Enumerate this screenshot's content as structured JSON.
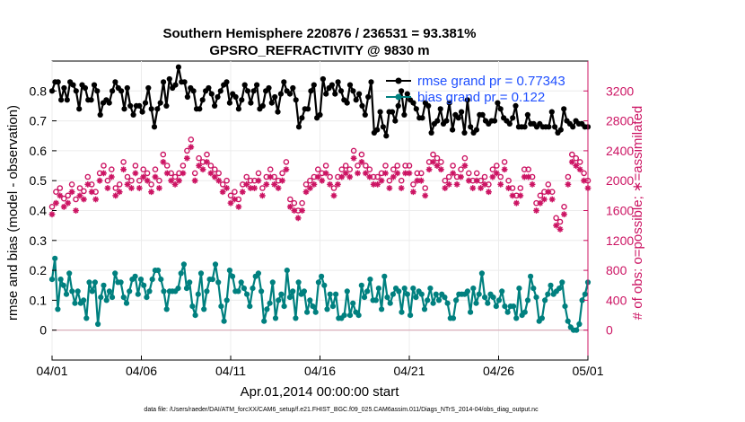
{
  "title_line1": "Southern Hemisphere 220876 / 236531 = 93.381%",
  "title_line2": "GPSRO_REFRACTIVITY @ 9830 m",
  "xlabel": "Apr.01,2014 00:00:00 start",
  "ylabel_left": "rmse and bias (model - observation)",
  "ylabel_right": "# of obs: o=possible; ∗=assimilated",
  "footnote": "data file: /Users/raeder/DAI/ATM_forcXX/CAM6_setup/f.e21.FHIST_BGC.f09_025.CAM6assim.011/Diags_NTrS_2014-04/obs_diag_output.nc",
  "legend": {
    "rmse": "rmse grand pr = 0.77343",
    "bias": "bias grand pr = 0.122"
  },
  "colors": {
    "rmse": "#000000",
    "bias": "#00807f",
    "count": "#cc1463",
    "zero_line": "#d8a7b4"
  },
  "chart_data": {
    "type": "line",
    "x_ticks": [
      "04/01",
      "04/06",
      "04/11",
      "04/16",
      "04/21",
      "04/26",
      "05/01"
    ],
    "x_tick_days": [
      0,
      5,
      10,
      15,
      20,
      25,
      30
    ],
    "xlim_days": [
      0,
      30
    ],
    "left_ylim": [
      -0.1,
      0.9
    ],
    "left_ticks": [
      "0",
      "0.1",
      "0.2",
      "0.3",
      "0.4",
      "0.5",
      "0.6",
      "0.7",
      "0.8"
    ],
    "left_tick_values": [
      0,
      0.1,
      0.2,
      0.3,
      0.4,
      0.5,
      0.6,
      0.7,
      0.8
    ],
    "right_ylim": [
      -400,
      3600
    ],
    "right_ticks": [
      "0",
      "400",
      "800",
      "1200",
      "1600",
      "2000",
      "2400",
      "2800",
      "3200"
    ],
    "right_tick_values": [
      0,
      400,
      800,
      1200,
      1600,
      2000,
      2400,
      2800,
      3200
    ],
    "series": [
      {
        "name": "rmse grand pr = 0.77343",
        "axis": "left",
        "values": [
          0.8,
          0.83,
          0.83,
          0.77,
          0.81,
          0.77,
          0.83,
          0.82,
          0.8,
          0.74,
          0.82,
          0.81,
          0.77,
          0.77,
          0.82,
          0.8,
          0.72,
          0.76,
          0.77,
          0.76,
          0.8,
          0.83,
          0.81,
          0.8,
          0.74,
          0.81,
          0.75,
          0.72,
          0.75,
          0.75,
          0.73,
          0.76,
          0.81,
          0.74,
          0.68,
          0.74,
          0.76,
          0.83,
          0.75,
          0.84,
          0.81,
          0.82,
          0.88,
          0.83,
          0.83,
          0.78,
          0.81,
          0.8,
          0.74,
          0.74,
          0.77,
          0.8,
          0.81,
          0.79,
          0.75,
          0.78,
          0.8,
          0.82,
          0.83,
          0.76,
          0.79,
          0.78,
          0.74,
          0.77,
          0.82,
          0.8,
          0.76,
          0.8,
          0.82,
          0.74,
          0.75,
          0.8,
          0.81,
          0.76,
          0.78,
          0.73,
          0.79,
          0.83,
          0.8,
          0.79,
          0.81,
          0.77,
          0.68,
          0.71,
          0.74,
          0.74,
          0.8,
          0.82,
          0.71,
          0.72,
          0.84,
          0.79,
          0.81,
          0.82,
          0.79,
          0.83,
          0.8,
          0.77,
          0.76,
          0.82,
          0.8,
          0.77,
          0.79,
          0.75,
          0.72,
          0.78,
          0.83,
          0.66,
          0.67,
          0.73,
          0.68,
          0.65,
          0.73,
          0.73,
          0.7,
          0.75,
          0.8,
          0.72,
          0.79,
          0.77,
          0.76,
          0.74,
          0.71,
          0.71,
          0.76,
          0.75,
          0.66,
          0.69,
          0.7,
          0.74,
          0.69,
          0.7,
          0.76,
          0.67,
          0.72,
          0.71,
          0.73,
          0.66,
          0.77,
          0.68,
          0.66,
          0.67,
          0.72,
          0.72,
          0.7,
          0.69,
          0.7,
          0.7,
          0.76,
          0.74,
          0.71,
          0.7,
          0.69,
          0.71,
          0.75,
          0.68,
          0.68,
          0.68,
          0.72,
          0.69,
          0.69,
          0.68,
          0.69,
          0.68,
          0.68,
          0.68,
          0.73,
          0.68,
          0.66,
          0.67,
          0.74,
          0.7,
          0.69,
          0.68,
          0.7,
          0.69,
          0.69,
          0.68,
          0.68
        ]
      },
      {
        "name": "bias grand pr = 0.122",
        "axis": "left",
        "values": [
          0.17,
          0.24,
          0.07,
          0.17,
          0.15,
          0.12,
          0.19,
          0.13,
          0.09,
          0.13,
          0.09,
          0.1,
          0.04,
          0.16,
          0.13,
          0.16,
          0.02,
          0.11,
          0.15,
          0.1,
          0.13,
          0.11,
          0.19,
          0.16,
          0.16,
          0.11,
          0.09,
          0.13,
          0.17,
          0.18,
          0.12,
          0.17,
          0.15,
          0.11,
          0.13,
          0.17,
          0.2,
          0.2,
          0.17,
          0.13,
          0.07,
          0.13,
          0.13,
          0.13,
          0.14,
          0.19,
          0.22,
          0.14,
          0.16,
          0.08,
          0.05,
          0.12,
          0.19,
          0.07,
          0.13,
          0.17,
          0.17,
          0.22,
          0.16,
          0.08,
          0.03,
          0.1,
          0.2,
          0.18,
          0.13,
          0.13,
          0.16,
          0.14,
          0.12,
          0.08,
          0.14,
          0.18,
          0.19,
          0.13,
          0.03,
          0.07,
          0.09,
          0.16,
          0.04,
          0.1,
          0.12,
          0.08,
          0.2,
          0.11,
          0.13,
          0.04,
          0.16,
          0.12,
          0.13,
          0.06,
          0.1,
          0.08,
          0.06,
          0.16,
          0.18,
          0.15,
          0.07,
          0.12,
          0.08,
          0.12,
          0.04,
          0.04,
          0.05,
          0.13,
          0.05,
          0.09,
          0.06,
          0.05,
          0.15,
          0.11,
          0.13,
          0.17,
          0.1,
          0.1,
          0.14,
          0.07,
          0.18,
          0.11,
          0.09,
          0.12,
          0.14,
          0.13,
          0.06,
          0.14,
          0.12,
          0.05,
          0.14,
          0.11,
          0.13,
          0.12,
          0.07,
          0.1,
          0.14,
          0.09,
          0.12,
          0.1,
          0.12,
          0.11,
          0.09,
          0.04,
          0.04,
          0.1,
          0.12,
          0.12,
          0.12,
          0.13,
          0.06,
          0.14,
          0.09,
          0.12,
          0.19,
          0.11,
          0.09,
          0.12,
          0.11,
          0.08,
          0.1,
          0.13,
          0.08,
          0.06,
          0.08,
          0.08,
          0.04,
          0.14,
          0.05,
          0.06,
          0.1,
          0.18,
          0.14,
          0.11,
          0.03,
          0.04,
          0.1,
          0.12,
          0.15,
          0.12,
          0.13,
          0.14,
          0.16,
          0.08,
          0.03,
          0.01,
          0.0,
          0.0,
          0.02,
          0.1,
          0.12,
          0.16
        ]
      },
      {
        "name": "possible",
        "axis": "right",
        "marker": "o",
        "values": [
          1650,
          1850,
          1900,
          1760,
          1800,
          1950,
          1750,
          1900,
          1860,
          2050,
          1950,
          1850,
          2100,
          2200,
          2000,
          2150,
          1900,
          1950,
          2250,
          2050,
          2000,
          2200,
          2000,
          2150,
          2100,
          1950,
          2150,
          2000,
          2350,
          2200,
          2100,
          2050,
          2100,
          2200,
          2400,
          2550,
          2100,
          2300,
          2250,
          2350,
          2200,
          2150,
          2100,
          1950,
          2000,
          1800,
          1850,
          1750,
          1950,
          2050,
          2000,
          2000,
          2100,
          1900,
          2050,
          2150,
          2050,
          2000,
          2100,
          2250,
          1750,
          1700,
          1600,
          1700,
          1950,
          2000,
          2050,
          2150,
          2100,
          2200,
          2050,
          1900,
          2050,
          2150,
          2200,
          2150,
          2400,
          2200,
          2350,
          2200,
          2150,
          2050,
          2050,
          2100,
          2200,
          2000,
          2150,
          2200,
          2000,
          2200,
          2200,
          1950,
          2100,
          2100,
          1900,
          2250,
          2350,
          2300,
          2250,
          2000,
          2050,
          2200,
          2050,
          2150,
          2300,
          2100,
          2000,
          2100,
          2000,
          2050,
          1950,
          2150,
          2200,
          2050,
          2250,
          2000,
          1900,
          1800,
          1900,
          2150,
          2150,
          2050,
          1700,
          1800,
          1850,
          1950,
          1850,
          1500,
          1450,
          1650,
          2050,
          2350,
          2300,
          2250,
          2100,
          2000
        ]
      },
      {
        "name": "assimilated",
        "axis": "right",
        "marker": "*",
        "values": [
          1550,
          1700,
          1800,
          1650,
          1700,
          1850,
          1600,
          1800,
          1750,
          1950,
          1850,
          1750,
          2000,
          2100,
          1900,
          2050,
          1800,
          1850,
          2150,
          1950,
          1900,
          2100,
          1900,
          2050,
          2000,
          1850,
          2050,
          1900,
          2250,
          2100,
          2000,
          1950,
          2000,
          2100,
          2300,
          2450,
          2000,
          2200,
          2150,
          2250,
          2100,
          2050,
          2000,
          1850,
          1900,
          1700,
          1750,
          1650,
          1850,
          1950,
          1900,
          1900,
          2000,
          1800,
          1950,
          2050,
          1950,
          1900,
          2000,
          2150,
          1650,
          1600,
          1500,
          1600,
          1850,
          1900,
          1950,
          2050,
          2000,
          2100,
          1950,
          1800,
          1950,
          2050,
          2100,
          2050,
          2300,
          2100,
          2250,
          2100,
          2050,
          1950,
          1950,
          2000,
          2100,
          1900,
          2050,
          2100,
          1900,
          2100,
          2100,
          1850,
          2000,
          2000,
          1800,
          2150,
          2250,
          2200,
          2150,
          1900,
          1950,
          2100,
          1950,
          2050,
          2200,
          2000,
          1900,
          2000,
          1900,
          1950,
          1850,
          2050,
          2100,
          1950,
          2150,
          1900,
          1800,
          1700,
          1800,
          2050,
          2050,
          1950,
          1600,
          1700,
          1750,
          1850,
          1750,
          1400,
          1350,
          1550,
          1950,
          2250,
          2200,
          2150,
          2000,
          1900
        ]
      }
    ]
  }
}
